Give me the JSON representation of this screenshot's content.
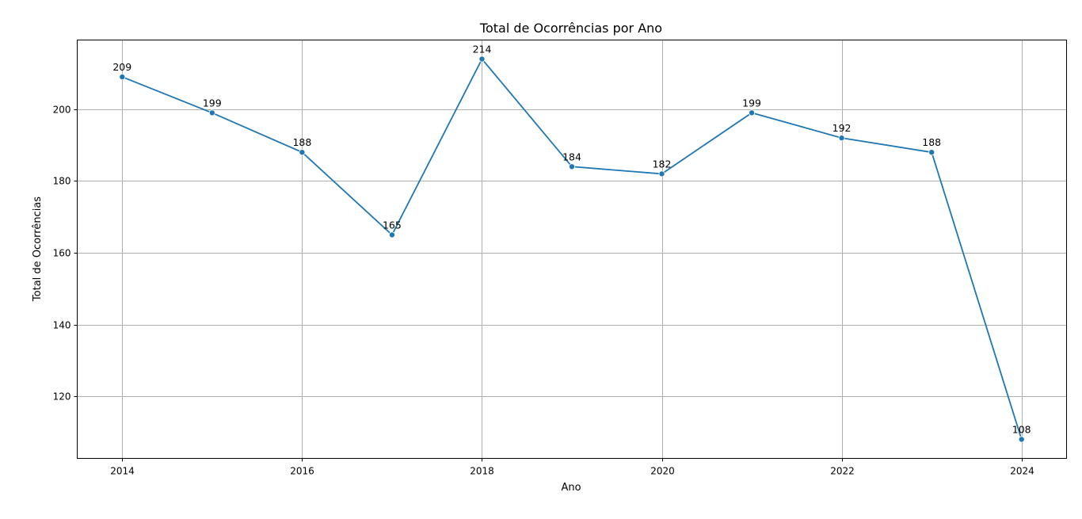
{
  "chart_data": {
    "type": "line",
    "title": "Total de Ocorrências por Ano",
    "xlabel": "Ano",
    "ylabel": "Total de Ocorrências",
    "x": [
      2014,
      2015,
      2016,
      2017,
      2018,
      2019,
      2020,
      2021,
      2022,
      2023,
      2024
    ],
    "series": [
      {
        "values": [
          209,
          199,
          188,
          165,
          214,
          184,
          182,
          199,
          192,
          188,
          108
        ]
      }
    ],
    "data_labels": [
      "209",
      "199",
      "188",
      "165",
      "214",
      "184",
      "182",
      "199",
      "192",
      "188",
      "108"
    ],
    "x_ticks": [
      2014,
      2016,
      2018,
      2020,
      2022,
      2024
    ],
    "y_ticks": [
      120,
      140,
      160,
      180,
      200
    ],
    "xlim": [
      2013.5,
      2024.5
    ],
    "ylim": [
      102.7,
      219.3
    ],
    "grid": true,
    "line_color": "#1f77b4",
    "marker": "circle"
  }
}
